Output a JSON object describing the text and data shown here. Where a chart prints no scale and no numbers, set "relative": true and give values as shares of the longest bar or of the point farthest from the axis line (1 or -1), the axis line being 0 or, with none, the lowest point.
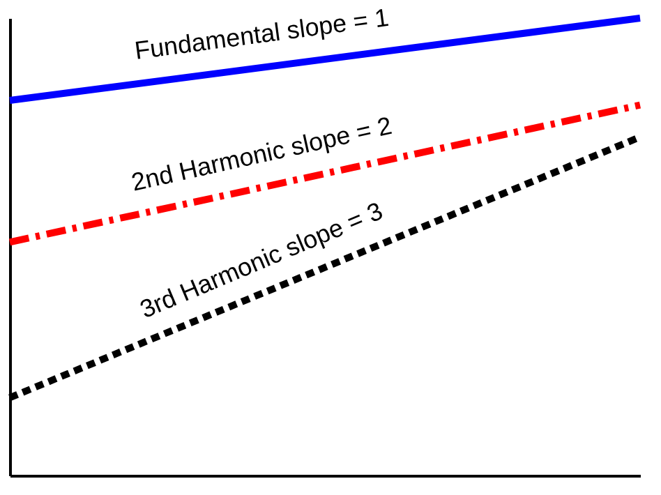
{
  "chart_data": {
    "type": "line",
    "relative": true,
    "categories": [
      null,
      null
    ],
    "legend": false,
    "marker": "none",
    "series": [
      {
        "name": "Fundamental  slope = 1",
        "color": "#0000ff",
        "line_style": "solid",
        "values": [
          0.82,
          1.0
        ]
      },
      {
        "name": "2nd Harmonic  slope = 2",
        "color": "#ff0000",
        "line_style": "dashed",
        "values": [
          0.51,
          0.81
        ]
      },
      {
        "name": "3rd Harmonic  slope = 3",
        "color": "#000000",
        "line_style": "dotted",
        "values": [
          0.17,
          0.74
        ]
      }
    ]
  }
}
